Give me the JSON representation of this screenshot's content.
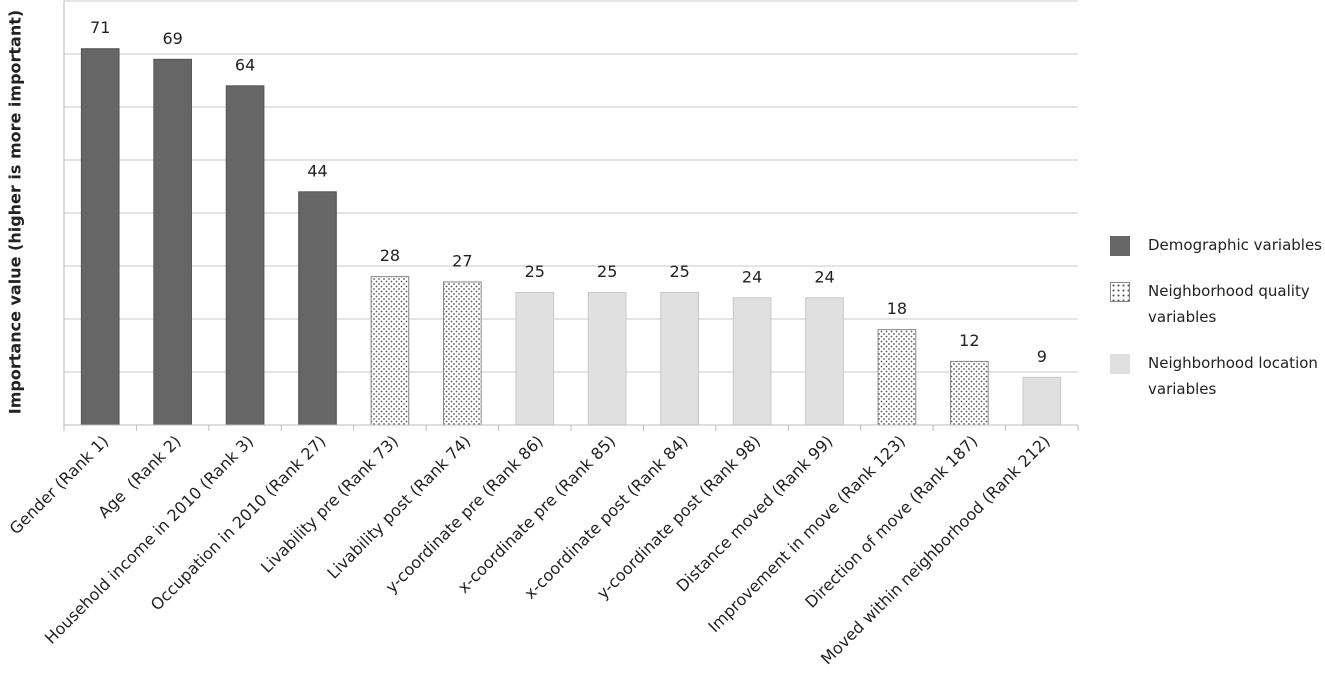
{
  "chart_data": {
    "type": "bar",
    "y_label": "Importance value (higher is more important)",
    "categories": [
      "Gender (Rank 1)",
      "Age  (Rank 2)",
      "Household income in 2010 (Rank 3)",
      "Occupation in 2010 (Rank 27)",
      "Livability pre (Rank 73)",
      "Livability post (Rank 74)",
      "y-coordinate pre (Rank 86)",
      "x-coordinate pre (Rank 85)",
      "x-coordinate post (Rank 84)",
      "y-coordinate post (Rank 98)",
      "Distance moved (Rank 99)",
      "Improvement in move (Rank 123)",
      "Direction of move (Rank 187)",
      "Moved within neighborhood (Rank 212)"
    ],
    "series": [
      {
        "name": "Demographic variables",
        "color": "#666666",
        "values": [
          71,
          69,
          64,
          44,
          null,
          null,
          null,
          null,
          null,
          null,
          null,
          null,
          null,
          null
        ]
      },
      {
        "name": "Neighborhood quality variables",
        "color": "#ffffff",
        "pattern": "dots",
        "values": [
          null,
          null,
          null,
          null,
          28,
          27,
          null,
          null,
          null,
          null,
          null,
          18,
          12,
          null
        ]
      },
      {
        "name": "Neighborhood location variables",
        "color": "#e0e0e0",
        "values": [
          null,
          null,
          null,
          null,
          null,
          null,
          25,
          25,
          25,
          24,
          24,
          null,
          null,
          9
        ]
      }
    ],
    "ylim": [
      0,
      80
    ],
    "yticks": [
      0,
      10,
      20,
      30,
      40,
      50,
      60,
      70,
      80
    ],
    "ytick_labels": false,
    "grid": true,
    "legend": "right"
  }
}
